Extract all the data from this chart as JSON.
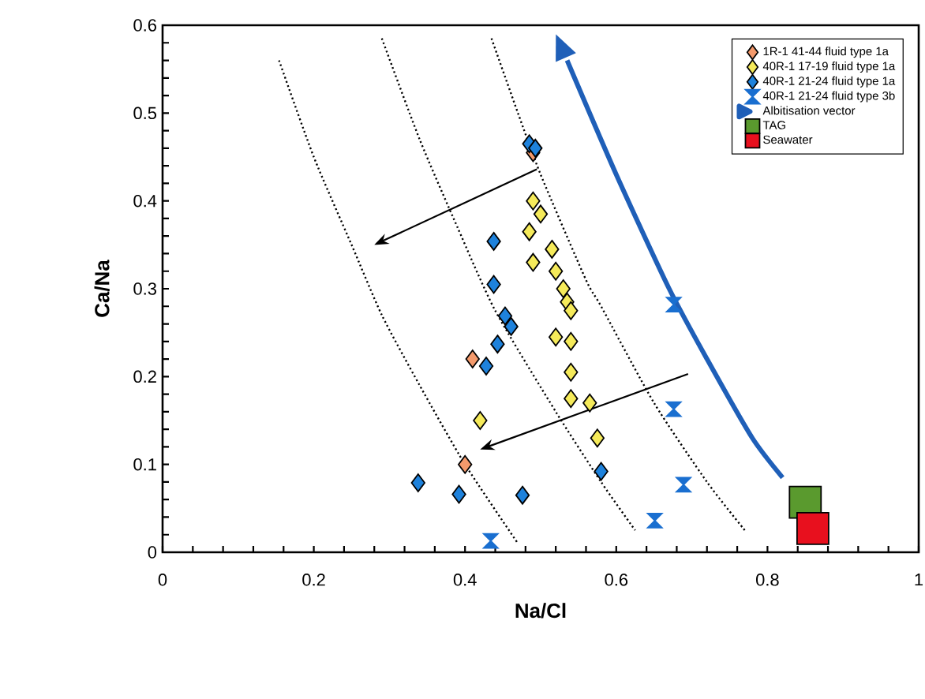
{
  "chart_data": {
    "type": "scatter",
    "xlabel": "Na/Cl",
    "ylabel": "Ca/Na",
    "xlim": [
      0,
      1
    ],
    "ylim": [
      0,
      0.6
    ],
    "xticks": [
      0,
      0.2,
      0.4,
      0.6,
      0.8,
      1
    ],
    "yticks": [
      0,
      0.1,
      0.2,
      0.3,
      0.4,
      0.5,
      0.6
    ],
    "grid": false,
    "legend": "top right",
    "series": [
      {
        "type": "line",
        "color": "#000000",
        "line_style": "dotted",
        "marker": "none",
        "x": [
          0.154,
          0.2,
          0.25,
          0.29,
          0.34,
          0.4,
          0.47
        ],
        "values": [
          0.56,
          0.45,
          0.35,
          0.27,
          0.19,
          0.1,
          0.01
        ]
      },
      {
        "type": "line",
        "color": "#000000",
        "line_style": "dotted",
        "marker": "none",
        "x": [
          0.29,
          0.34,
          0.39,
          0.44,
          0.52,
          0.58,
          0.625
        ],
        "values": [
          0.585,
          0.47,
          0.37,
          0.275,
          0.16,
          0.08,
          0.025
        ]
      },
      {
        "type": "line",
        "color": "#000000",
        "line_style": "dotted",
        "marker": "none",
        "x": [
          0.435,
          0.47,
          0.5,
          0.56,
          0.58,
          0.65,
          0.72,
          0.77
        ],
        "values": [
          0.585,
          0.5,
          0.43,
          0.31,
          0.28,
          0.17,
          0.08,
          0.025
        ]
      },
      {
        "name": "1R-1 41-44 fluid type 1a",
        "color": "#f49a6c",
        "marker": "diamond",
        "x": [
          0.49,
          0.41,
          0.4
        ],
        "values": [
          0.455,
          0.22,
          0.1
        ]
      },
      {
        "name": "40R-1 17-19 fluid type 1a",
        "color": "#f5ea5a",
        "marker": "diamond",
        "x": [
          0.49,
          0.5,
          0.485,
          0.49,
          0.515,
          0.52,
          0.53,
          0.535,
          0.54,
          0.52,
          0.54,
          0.54,
          0.54,
          0.565,
          0.575,
          0.42
        ],
        "values": [
          0.4,
          0.385,
          0.365,
          0.33,
          0.345,
          0.32,
          0.3,
          0.285,
          0.275,
          0.245,
          0.24,
          0.205,
          0.175,
          0.17,
          0.13,
          0.15
        ]
      },
      {
        "name": "40R-1 21-24 fluid type 1a",
        "color": "#1e82dc",
        "marker": "diamond",
        "x": [
          0.485,
          0.493,
          0.438,
          0.438,
          0.453,
          0.461,
          0.443,
          0.428,
          0.338,
          0.392,
          0.476,
          0.58
        ],
        "values": [
          0.465,
          0.46,
          0.354,
          0.305,
          0.269,
          0.257,
          0.237,
          0.212,
          0.079,
          0.066,
          0.065,
          0.092
        ]
      },
      {
        "name": "40R-1 21-24 fluid type 3b",
        "color": "#1a6fd0",
        "x": [
          0.434,
          0.676,
          0.676,
          0.689,
          0.651
        ],
        "values": [
          0.013,
          0.282,
          0.163,
          0.077,
          0.036
        ]
      },
      {
        "name": "Albitisation vector",
        "type": "line",
        "color": "#1f5fb8",
        "line_style": "solid",
        "marker": "none",
        "x": [
          0.82,
          0.78,
          0.72,
          0.67,
          0.6,
          0.535
        ],
        "values": [
          0.085,
          0.13,
          0.22,
          0.3,
          0.43,
          0.56
        ]
      },
      {
        "name": "TAG",
        "color": "#5a9a2e",
        "marker": "square",
        "x": [
          0.85
        ],
        "values": [
          0.057
        ]
      },
      {
        "name": "Seawater",
        "color": "#e8101e",
        "marker": "square",
        "x": [
          0.86
        ],
        "values": [
          0.027
        ]
      }
    ]
  }
}
